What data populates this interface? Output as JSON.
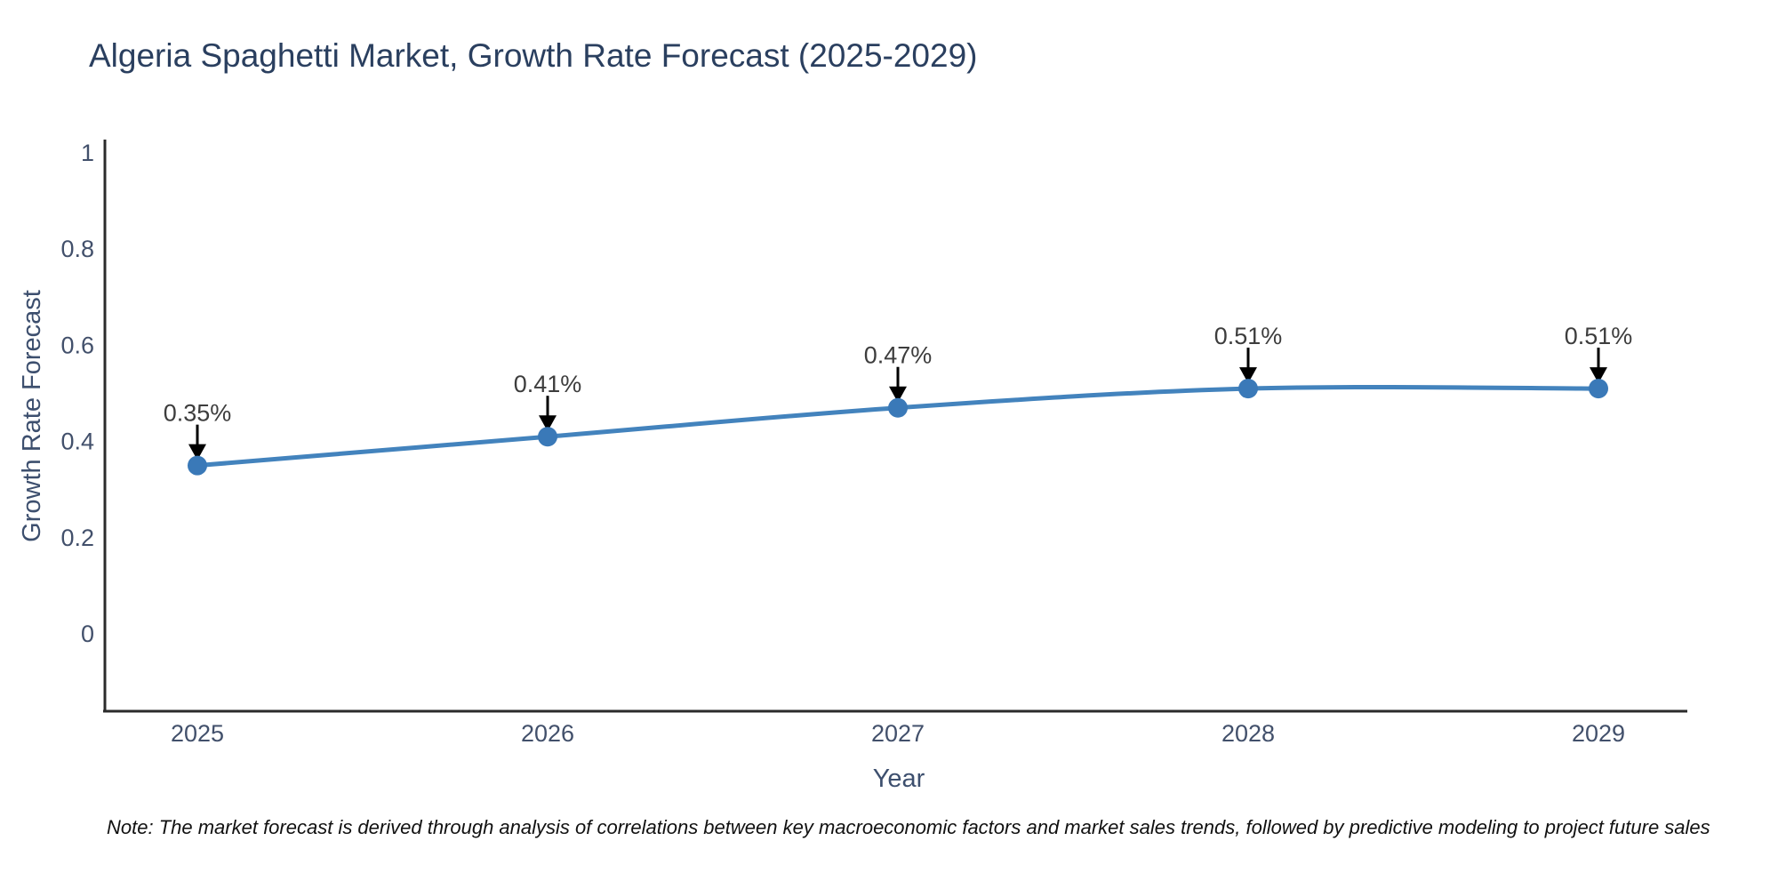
{
  "chart_data": {
    "type": "line",
    "title": "Algeria Spaghetti Market, Growth Rate Forecast (2025-2029)",
    "xlabel": "Year",
    "ylabel": "Growth Rate Forecast",
    "x": [
      "2025",
      "2026",
      "2027",
      "2028",
      "2029"
    ],
    "series": [
      {
        "name": "Growth Rate Forecast",
        "values": [
          0.35,
          0.41,
          0.47,
          0.51,
          0.51
        ]
      }
    ],
    "data_labels": [
      "0.35%",
      "0.41%",
      "0.47%",
      "0.51%",
      "0.51%"
    ],
    "yticks": [
      "0",
      "0.2",
      "0.4",
      "0.6",
      "0.8",
      "1"
    ],
    "ytick_values": [
      0,
      0.2,
      0.4,
      0.6,
      0.8,
      1
    ],
    "ylim": [
      -0.16,
      1.03
    ],
    "grid": false,
    "legend": false,
    "line_shape": "spline",
    "line_color": "#4383bd",
    "marker_color": "#3a79b8",
    "arrow_color": "#000000"
  },
  "note": "Note: The market forecast is derived through analysis of correlations between key macroeconomic factors and market sales trends, followed by predictive modeling to project future sales",
  "colors": {
    "title": "#2a3f5f",
    "tick_label": "#42506b",
    "axis_title": "#3d4f6e",
    "data_label": "#3d3d3d",
    "axis_line": "#2b2b2b",
    "background": "#ffffff"
  }
}
